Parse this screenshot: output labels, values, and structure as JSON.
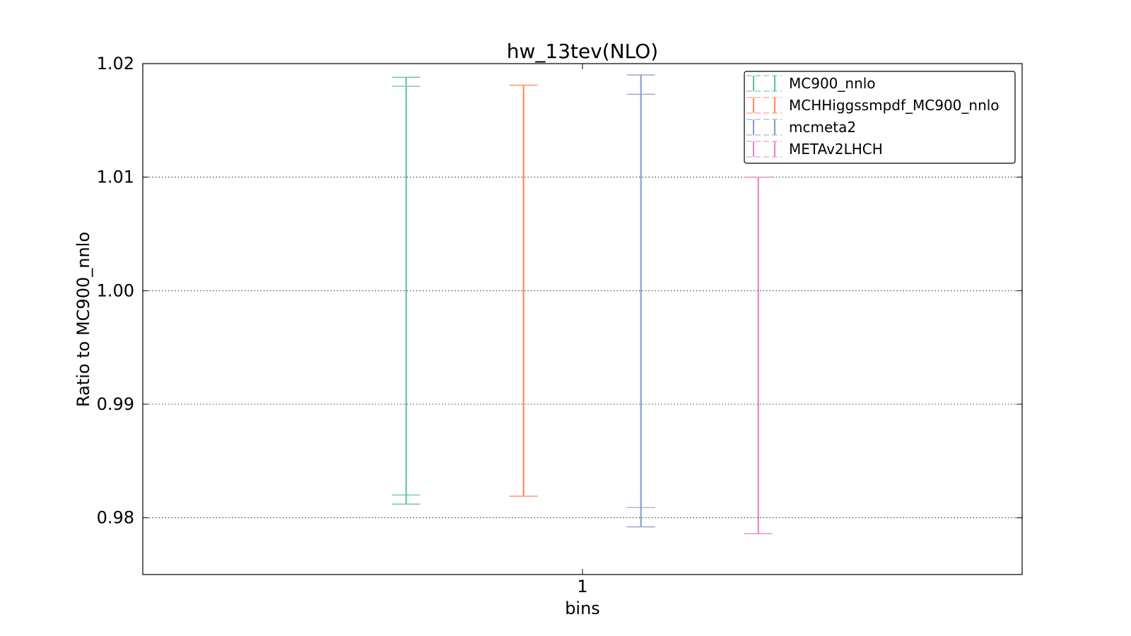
{
  "chart_data": {
    "type": "errorbar",
    "title": "hw_13tev(NLO)",
    "xlabel": "bins",
    "ylabel": "Ratio to MC900_nnlo",
    "x_ticks": [
      "1"
    ],
    "ylim": [
      0.975,
      1.02
    ],
    "y_ticks": [
      "0.98",
      "0.99",
      "1.00",
      "1.01",
      "1.02"
    ],
    "y_tick_values": [
      0.98,
      0.99,
      1.0,
      1.01,
      1.02
    ],
    "grid": "horizontal-dotted",
    "legend_position": "top-right",
    "series": [
      {
        "name": "MC900_nnlo",
        "color": "#66c2a5",
        "bin": "1",
        "outer": [
          0.9812,
          1.0188
        ],
        "inner": [
          0.982,
          1.018
        ]
      },
      {
        "name": "MCHHiggssmpdf_MC900_nnlo",
        "color": "#fc8d62",
        "bin": "1",
        "outer": [
          0.9819,
          1.0181
        ],
        "inner": [
          0.9819,
          1.0181
        ]
      },
      {
        "name": "mcmeta2",
        "color": "#8da0cb",
        "bin": "1",
        "outer": [
          0.9792,
          1.019
        ],
        "inner": [
          0.9809,
          1.0173
        ]
      },
      {
        "name": "METAv2LHCH",
        "color": "#e78ac3",
        "bin": "1",
        "outer": [
          0.9786,
          1.01
        ],
        "inner": [
          0.9786,
          1.01
        ]
      }
    ]
  }
}
